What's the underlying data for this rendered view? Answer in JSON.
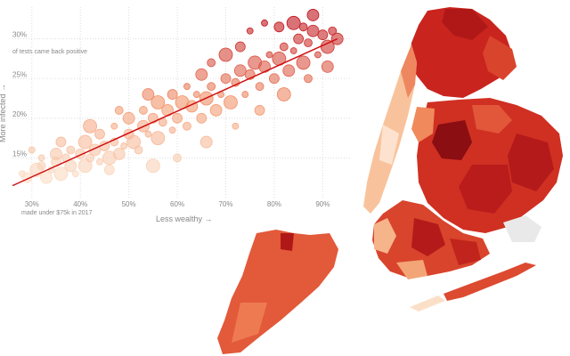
{
  "chart_data": {
    "type": "scatter",
    "xlabel": "Less wealthy →",
    "ylabel": "More infected →",
    "x_note": "made under $75k in 2017",
    "y_note": "of tests came back positive",
    "x_ticks": [
      "30%",
      "40%",
      "50%",
      "60%",
      "70%",
      "80%",
      "90%"
    ],
    "y_ticks": [
      "15%",
      "20%",
      "25%",
      "30%"
    ],
    "xlim": [
      26,
      96
    ],
    "ylim": [
      10,
      34
    ],
    "trend_line": {
      "from": [
        26,
        11.5
      ],
      "to": [
        93,
        30
      ]
    },
    "points": [
      [
        28,
        13
      ],
      [
        29,
        12.5
      ],
      [
        31,
        13.5
      ],
      [
        32,
        14
      ],
      [
        33,
        12.5
      ],
      [
        34,
        13.5
      ],
      [
        35,
        14.5
      ],
      [
        36,
        13
      ],
      [
        37,
        15
      ],
      [
        38,
        14
      ],
      [
        39,
        13
      ],
      [
        40,
        15.5
      ],
      [
        41,
        14
      ],
      [
        42,
        15
      ],
      [
        43,
        16
      ],
      [
        44,
        14.5
      ],
      [
        45,
        16.5
      ],
      [
        46,
        15
      ],
      [
        47,
        17
      ],
      [
        48,
        15.5
      ],
      [
        49,
        16.5
      ],
      [
        50,
        18
      ],
      [
        51,
        17
      ],
      [
        52,
        16
      ],
      [
        53,
        19
      ],
      [
        54,
        18
      ],
      [
        55,
        20
      ],
      [
        56,
        17.5
      ],
      [
        57,
        19.5
      ],
      [
        58,
        21
      ],
      [
        59,
        18.5
      ],
      [
        60,
        20
      ],
      [
        61,
        22
      ],
      [
        62,
        19
      ],
      [
        63,
        21.5
      ],
      [
        64,
        23
      ],
      [
        65,
        20
      ],
      [
        66,
        22.5
      ],
      [
        67,
        24
      ],
      [
        68,
        21
      ],
      [
        69,
        23
      ],
      [
        70,
        25
      ],
      [
        71,
        22
      ],
      [
        72,
        24.5
      ],
      [
        73,
        26
      ],
      [
        74,
        23
      ],
      [
        75,
        25.5
      ],
      [
        76,
        27
      ],
      [
        77,
        24
      ],
      [
        78,
        26.5
      ],
      [
        79,
        28
      ],
      [
        80,
        25
      ],
      [
        81,
        27.5
      ],
      [
        82,
        29
      ],
      [
        83,
        26
      ],
      [
        84,
        28.5
      ],
      [
        85,
        30
      ],
      [
        86,
        27
      ],
      [
        87,
        29.5
      ],
      [
        88,
        31
      ],
      [
        89,
        28
      ],
      [
        90,
        30.5
      ],
      [
        91,
        29
      ],
      [
        92,
        31
      ],
      [
        93,
        30
      ],
      [
        78,
        32
      ],
      [
        81,
        31.5
      ],
      [
        84,
        32
      ],
      [
        86,
        31.5
      ],
      [
        88,
        33
      ],
      [
        75,
        31
      ],
      [
        73,
        29
      ],
      [
        70,
        28
      ],
      [
        67,
        27
      ],
      [
        65,
        25.5
      ],
      [
        62,
        24
      ],
      [
        59,
        23
      ],
      [
        56,
        22
      ],
      [
        53,
        21
      ],
      [
        50,
        20
      ],
      [
        47,
        19
      ],
      [
        44,
        18
      ],
      [
        41,
        17
      ],
      [
        38,
        16
      ],
      [
        35,
        15.5
      ],
      [
        32,
        15
      ],
      [
        46,
        13.5
      ],
      [
        55,
        14
      ],
      [
        60,
        15
      ],
      [
        66,
        17
      ],
      [
        72,
        19
      ],
      [
        77,
        21
      ],
      [
        82,
        23
      ],
      [
        87,
        25
      ],
      [
        91,
        26.5
      ],
      [
        30,
        16
      ],
      [
        36,
        17
      ],
      [
        42,
        19
      ],
      [
        48,
        21
      ],
      [
        54,
        23
      ]
    ]
  },
  "colors": {
    "light": "#fbe2cc",
    "mid": "#f2946a",
    "dark": "#c0141c",
    "darkest": "#7a0a10",
    "trend": "#d01010",
    "grid": "#dddddd",
    "water": "#ffffff"
  }
}
